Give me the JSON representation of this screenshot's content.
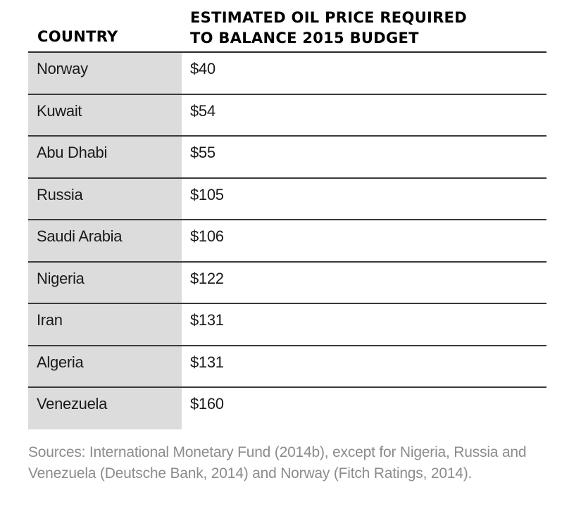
{
  "table": {
    "header": {
      "country": "COUNTRY",
      "price_line1": "ESTIMATED OIL PRICE REQUIRED",
      "price_line2": "TO BALANCE 2015 BUDGET"
    },
    "rows": [
      {
        "country": "Norway",
        "price": "$40"
      },
      {
        "country": "Kuwait",
        "price": "$54"
      },
      {
        "country": "Abu Dhabi",
        "price": "$55"
      },
      {
        "country": "Russia",
        "price": "$105"
      },
      {
        "country": "Saudi Arabia",
        "price": "$106"
      },
      {
        "country": "Nigeria",
        "price": "$122"
      },
      {
        "country": "Iran",
        "price": "$131"
      },
      {
        "country": "Algeria",
        "price": "$131"
      },
      {
        "country": "Venezuela",
        "price": "$160"
      }
    ]
  },
  "sources": {
    "text": "Sources: International Monetary Fund (2014b), except for Nigeria, Russia and Venezuela (Deutsche Bank, 2014) and Norway (Fitch Ratings, 2014)."
  },
  "colors": {
    "country_column_bg": "#dcdcdc",
    "rule": "#2a2a2a",
    "sources_text": "#8c8c8c"
  }
}
